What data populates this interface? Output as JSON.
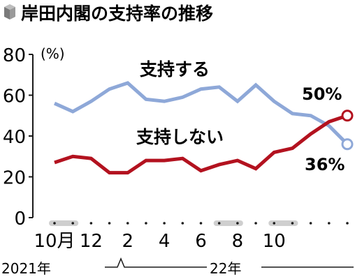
{
  "colors": {
    "support": "#8ea8d8",
    "nonsupport": "#b3121f",
    "axis": "#1a1a1a",
    "marker": "#cfcfcf",
    "title_icon": "#8a8a8a"
  },
  "chart_data": {
    "type": "line",
    "title": "岸田内閣の支持率の推移",
    "ylabel": "(%)",
    "ylim": [
      0,
      80
    ],
    "yticks": [
      0,
      20,
      40,
      60,
      80
    ],
    "x_tick_labels": [
      "10月",
      "12",
      "2",
      "4",
      "6",
      "8",
      "10"
    ],
    "year_labels": [
      "2021年",
      "22年"
    ],
    "grid": false,
    "series": [
      {
        "name": "支持する",
        "end_label": "36%",
        "values": [
          56,
          52,
          57,
          63,
          66,
          58,
          57,
          59,
          63,
          64,
          57,
          65,
          57,
          51,
          50,
          45,
          36
        ]
      },
      {
        "name": "支持しない",
        "end_label": "50%",
        "values": [
          27,
          30,
          29,
          22,
          22,
          28,
          28,
          29,
          23,
          26,
          28,
          24,
          32,
          34,
          41,
          47,
          50
        ]
      }
    ]
  }
}
